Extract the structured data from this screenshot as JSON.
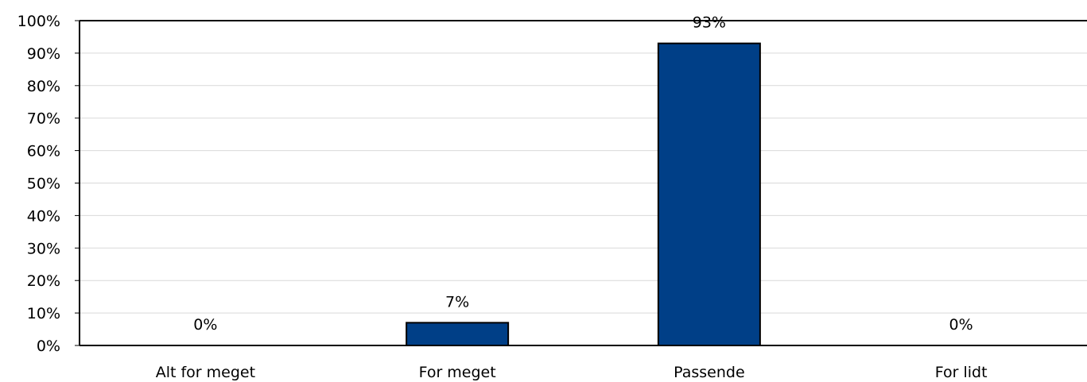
{
  "chart_data": {
    "type": "bar",
    "categories": [
      "Alt for meget",
      "For meget",
      "Passende",
      "For lidt"
    ],
    "values": [
      0,
      7,
      93,
      0
    ],
    "data_labels": [
      "0%",
      "7%",
      "93%",
      "0%"
    ],
    "ylim": [
      0,
      100
    ],
    "yticks": [
      0,
      10,
      20,
      30,
      40,
      50,
      60,
      70,
      80,
      90,
      100
    ],
    "ytick_labels": [
      "0%",
      "10%",
      "20%",
      "30%",
      "40%",
      "50%",
      "60%",
      "70%",
      "80%",
      "90%",
      "100%"
    ],
    "grid": true,
    "legend": false,
    "bar_color": "#003f87"
  }
}
